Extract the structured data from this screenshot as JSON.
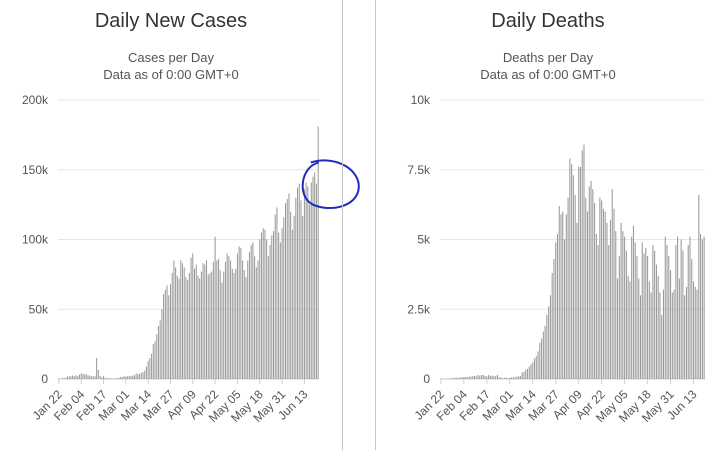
{
  "chart_data": [
    {
      "type": "bar",
      "title": "Daily New Cases",
      "subtitle_lines": [
        "Cases per Day",
        "Data as of 0:00 GMT+0"
      ],
      "xlabel": "",
      "ylabel": "",
      "ylim": [
        0,
        200000
      ],
      "y_ticks": [
        0,
        50000,
        100000,
        150000,
        200000
      ],
      "y_tick_labels": [
        "0",
        "50k",
        "100k",
        "150k",
        "200k"
      ],
      "x_tick_labels": [
        "Jan 22",
        "Feb 04",
        "Feb 17",
        "Mar 01",
        "Mar 14",
        "Mar 27",
        "Apr 09",
        "Apr 22",
        "May 05",
        "May 18",
        "May 31",
        "Jun 13"
      ],
      "x_tick_day_index": [
        0,
        13,
        26,
        39,
        52,
        65,
        78,
        91,
        104,
        117,
        130,
        143
      ],
      "grid": true,
      "bar_color": "#999999",
      "annotation": {
        "shape": "circle",
        "color": "#1f2bbd",
        "target_day_index": 149
      },
      "values": [
        555,
        100,
        650,
        570,
        810,
        2000,
        1700,
        2100,
        2500,
        2000,
        2700,
        2000,
        3100,
        3900,
        3700,
        3200,
        3400,
        2600,
        2500,
        2000,
        1900,
        2200,
        15100,
        6500,
        2100,
        1200,
        2000,
        900,
        600,
        700,
        500,
        400,
        300,
        500,
        600,
        800,
        1400,
        1300,
        2000,
        1800,
        1900,
        2300,
        2100,
        2500,
        2600,
        4000,
        3500,
        3800,
        4500,
        4800,
        6000,
        9000,
        13000,
        15000,
        18000,
        25000,
        27000,
        32000,
        38000,
        42000,
        50000,
        61000,
        64000,
        67000,
        60000,
        68000,
        76000,
        85000,
        80000,
        74000,
        72000,
        85000,
        83000,
        80000,
        73000,
        71000,
        76000,
        87000,
        90000,
        79000,
        82000,
        74000,
        72000,
        77000,
        83000,
        82000,
        85000,
        75000,
        76000,
        77000,
        84000,
        102000,
        85000,
        86000,
        78000,
        69000,
        77000,
        84000,
        90000,
        88000,
        85000,
        79000,
        76000,
        79000,
        90000,
        95000,
        94000,
        85000,
        78000,
        73000,
        85000,
        91000,
        96000,
        98000,
        88000,
        80000,
        85000,
        100000,
        105000,
        108000,
        107000,
        100000,
        88000,
        96000,
        103000,
        106000,
        118000,
        123000,
        105000,
        98000,
        108000,
        116000,
        126000,
        129000,
        133000,
        120000,
        107000,
        117000,
        130000,
        137000,
        140000,
        128000,
        117000,
        136000,
        141000,
        138000,
        125000,
        141000,
        145000,
        148000,
        140000,
        181000
      ]
    },
    {
      "type": "bar",
      "title": "Daily Deaths",
      "subtitle_lines": [
        "Deaths per Day",
        "Data as of 0:00 GMT+0"
      ],
      "xlabel": "",
      "ylabel": "",
      "ylim": [
        0,
        10000
      ],
      "y_ticks": [
        0,
        2500,
        5000,
        7500,
        10000
      ],
      "y_tick_labels": [
        "0",
        "2.5k",
        "5k",
        "7.5k",
        "10k"
      ],
      "x_tick_labels": [
        "Jan 22",
        "Feb 04",
        "Feb 17",
        "Mar 01",
        "Mar 14",
        "Mar 27",
        "Apr 09",
        "Apr 22",
        "May 05",
        "May 18",
        "May 31",
        "Jun 13"
      ],
      "x_tick_day_index": [
        0,
        13,
        26,
        39,
        52,
        65,
        78,
        91,
        104,
        117,
        130,
        143
      ],
      "grid": true,
      "bar_color": "#999999",
      "values": [
        17,
        1,
        8,
        16,
        14,
        26,
        26,
        38,
        43,
        46,
        45,
        57,
        64,
        66,
        73,
        73,
        86,
        89,
        97,
        108,
        97,
        146,
        121,
        143,
        142,
        106,
        98,
        139,
        115,
        118,
        109,
        97,
        150,
        70,
        52,
        29,
        44,
        47,
        35,
        42,
        60,
        55,
        75,
        85,
        95,
        105,
        230,
        260,
        330,
        360,
        440,
        520,
        600,
        740,
        820,
        990,
        1300,
        1450,
        1700,
        1900,
        2300,
        2600,
        3000,
        3800,
        4300,
        4900,
        5200,
        6200,
        5900,
        6000,
        5000,
        5900,
        6500,
        7900,
        7700,
        7300,
        6600,
        5600,
        7600,
        7600,
        8200,
        8400,
        6500,
        6000,
        6900,
        7100,
        6800,
        6300,
        5200,
        4800,
        6500,
        6400,
        6100,
        6000,
        5600,
        4800,
        5700,
        6800,
        6100,
        5300,
        3600,
        4400,
        5600,
        5300,
        5100,
        4600,
        3700,
        3500,
        5100,
        5500,
        4900,
        4400,
        3600,
        3000,
        4900,
        4500,
        4700,
        4400,
        3500,
        3100,
        4800,
        4600,
        4100,
        3700,
        3100,
        2300,
        3200,
        5100,
        4800,
        4400,
        3900,
        3100,
        3200,
        4800,
        5100,
        3600,
        5000,
        4600,
        3000,
        3300,
        4800,
        5100,
        4300,
        3500,
        3300,
        3200,
        6600,
        5200,
        5000,
        5100
      ]
    }
  ]
}
